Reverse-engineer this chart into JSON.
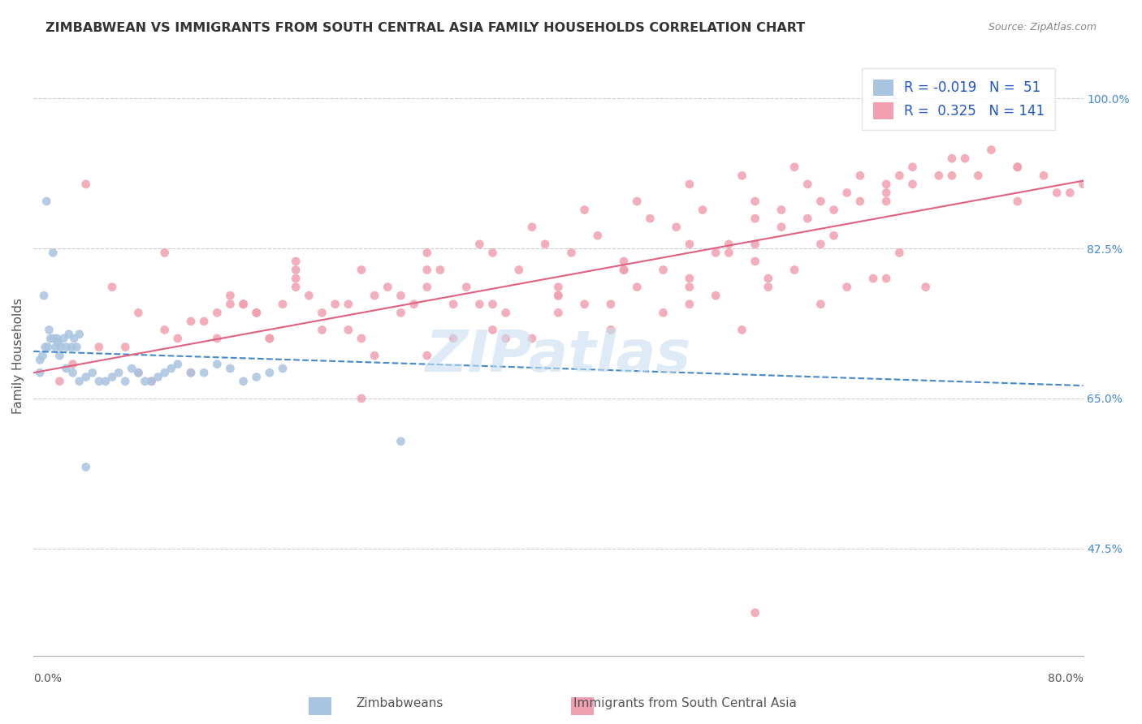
{
  "title": "ZIMBABWEAN VS IMMIGRANTS FROM SOUTH CENTRAL ASIA FAMILY HOUSEHOLDS CORRELATION CHART",
  "source": "Source: ZipAtlas.com",
  "ylabel": "Family Households",
  "right_yticks": [
    "47.5%",
    "65.0%",
    "82.5%",
    "100.0%"
  ],
  "right_ytick_vals": [
    0.475,
    0.65,
    0.825,
    1.0
  ],
  "xmin": 0.0,
  "xmax": 0.8,
  "ymin": 0.35,
  "ymax": 1.05,
  "zimbabwean_R": -0.019,
  "zimbabwean_N": 51,
  "sca_R": 0.325,
  "sca_N": 141,
  "blue_color": "#a8c4e0",
  "pink_color": "#f0a0b0",
  "blue_line_color": "#4488cc",
  "pink_line_color": "#e06080",
  "legend_R_color": "#2255cc",
  "watermark": "ZIPatlas",
  "watermark_color": "#c8dff0",
  "zim_trend_slope": -0.05,
  "zim_trend_intercept": 0.705,
  "sca_trend_slope": 0.28,
  "sca_trend_intercept": 0.68,
  "zimbabwean_scatter_x": [
    0.01,
    0.015,
    0.008,
    0.012,
    0.005,
    0.018,
    0.02,
    0.025,
    0.03,
    0.035,
    0.04,
    0.045,
    0.05,
    0.055,
    0.06,
    0.065,
    0.07,
    0.075,
    0.08,
    0.085,
    0.09,
    0.095,
    0.1,
    0.105,
    0.11,
    0.12,
    0.13,
    0.14,
    0.15,
    0.16,
    0.17,
    0.18,
    0.19,
    0.005,
    0.007,
    0.009,
    0.011,
    0.013,
    0.015,
    0.017,
    0.019,
    0.021,
    0.023,
    0.025,
    0.027,
    0.029,
    0.031,
    0.033,
    0.035,
    0.28,
    0.04
  ],
  "zimbabwean_scatter_y": [
    0.88,
    0.82,
    0.77,
    0.73,
    0.68,
    0.72,
    0.7,
    0.685,
    0.68,
    0.67,
    0.675,
    0.68,
    0.67,
    0.67,
    0.675,
    0.68,
    0.67,
    0.685,
    0.68,
    0.67,
    0.67,
    0.675,
    0.68,
    0.685,
    0.69,
    0.68,
    0.68,
    0.69,
    0.685,
    0.67,
    0.675,
    0.68,
    0.685,
    0.695,
    0.7,
    0.71,
    0.71,
    0.72,
    0.72,
    0.71,
    0.715,
    0.71,
    0.72,
    0.71,
    0.725,
    0.71,
    0.72,
    0.71,
    0.725,
    0.6,
    0.57
  ],
  "sca_scatter_x": [
    0.02,
    0.04,
    0.06,
    0.08,
    0.1,
    0.12,
    0.14,
    0.16,
    0.18,
    0.2,
    0.22,
    0.24,
    0.26,
    0.28,
    0.3,
    0.32,
    0.34,
    0.36,
    0.38,
    0.4,
    0.42,
    0.44,
    0.46,
    0.48,
    0.5,
    0.52,
    0.54,
    0.56,
    0.58,
    0.6,
    0.62,
    0.64,
    0.66,
    0.68,
    0.05,
    0.1,
    0.15,
    0.2,
    0.25,
    0.3,
    0.35,
    0.4,
    0.45,
    0.5,
    0.55,
    0.6,
    0.65,
    0.08,
    0.12,
    0.16,
    0.2,
    0.24,
    0.28,
    0.32,
    0.36,
    0.4,
    0.44,
    0.48,
    0.52,
    0.56,
    0.03,
    0.07,
    0.11,
    0.13,
    0.17,
    0.19,
    0.22,
    0.26,
    0.29,
    0.33,
    0.37,
    0.41,
    0.45,
    0.49,
    0.53,
    0.57,
    0.61,
    0.65,
    0.18,
    0.23,
    0.27,
    0.31,
    0.35,
    0.39,
    0.43,
    0.47,
    0.51,
    0.55,
    0.59,
    0.63,
    0.67,
    0.09,
    0.14,
    0.17,
    0.21,
    0.25,
    0.3,
    0.34,
    0.38,
    0.42,
    0.46,
    0.5,
    0.54,
    0.58,
    0.62,
    0.66,
    0.7,
    0.72,
    0.75,
    0.5,
    0.53,
    0.55,
    0.57,
    0.59,
    0.61,
    0.63,
    0.65,
    0.67,
    0.69,
    0.71,
    0.73,
    0.75,
    0.77,
    0.79,
    0.25,
    0.3,
    0.35,
    0.4,
    0.45,
    0.5,
    0.55,
    0.6,
    0.65,
    0.7,
    0.75,
    0.78,
    0.8,
    0.15,
    0.2,
    0.55
  ],
  "sca_scatter_y": [
    0.67,
    0.9,
    0.78,
    0.75,
    0.82,
    0.68,
    0.75,
    0.76,
    0.72,
    0.8,
    0.75,
    0.76,
    0.7,
    0.75,
    0.78,
    0.72,
    0.76,
    0.75,
    0.72,
    0.75,
    0.76,
    0.73,
    0.78,
    0.75,
    0.76,
    0.77,
    0.73,
    0.79,
    0.8,
    0.76,
    0.78,
    0.79,
    0.82,
    0.78,
    0.71,
    0.73,
    0.77,
    0.79,
    0.72,
    0.8,
    0.76,
    0.77,
    0.8,
    0.78,
    0.81,
    0.83,
    0.79,
    0.68,
    0.74,
    0.76,
    0.78,
    0.73,
    0.77,
    0.76,
    0.72,
    0.78,
    0.76,
    0.8,
    0.82,
    0.78,
    0.69,
    0.71,
    0.72,
    0.74,
    0.75,
    0.76,
    0.73,
    0.77,
    0.76,
    0.78,
    0.8,
    0.82,
    0.81,
    0.85,
    0.83,
    0.87,
    0.84,
    0.88,
    0.72,
    0.76,
    0.78,
    0.8,
    0.82,
    0.83,
    0.84,
    0.86,
    0.87,
    0.88,
    0.9,
    0.91,
    0.92,
    0.67,
    0.72,
    0.75,
    0.77,
    0.8,
    0.82,
    0.83,
    0.85,
    0.87,
    0.88,
    0.9,
    0.91,
    0.92,
    0.89,
    0.91,
    0.93,
    0.91,
    0.88,
    0.79,
    0.82,
    0.83,
    0.85,
    0.86,
    0.87,
    0.88,
    0.89,
    0.9,
    0.91,
    0.93,
    0.94,
    0.92,
    0.91,
    0.89,
    0.65,
    0.7,
    0.73,
    0.77,
    0.8,
    0.83,
    0.86,
    0.88,
    0.9,
    0.91,
    0.92,
    0.89,
    0.9,
    0.76,
    0.81,
    0.4
  ]
}
